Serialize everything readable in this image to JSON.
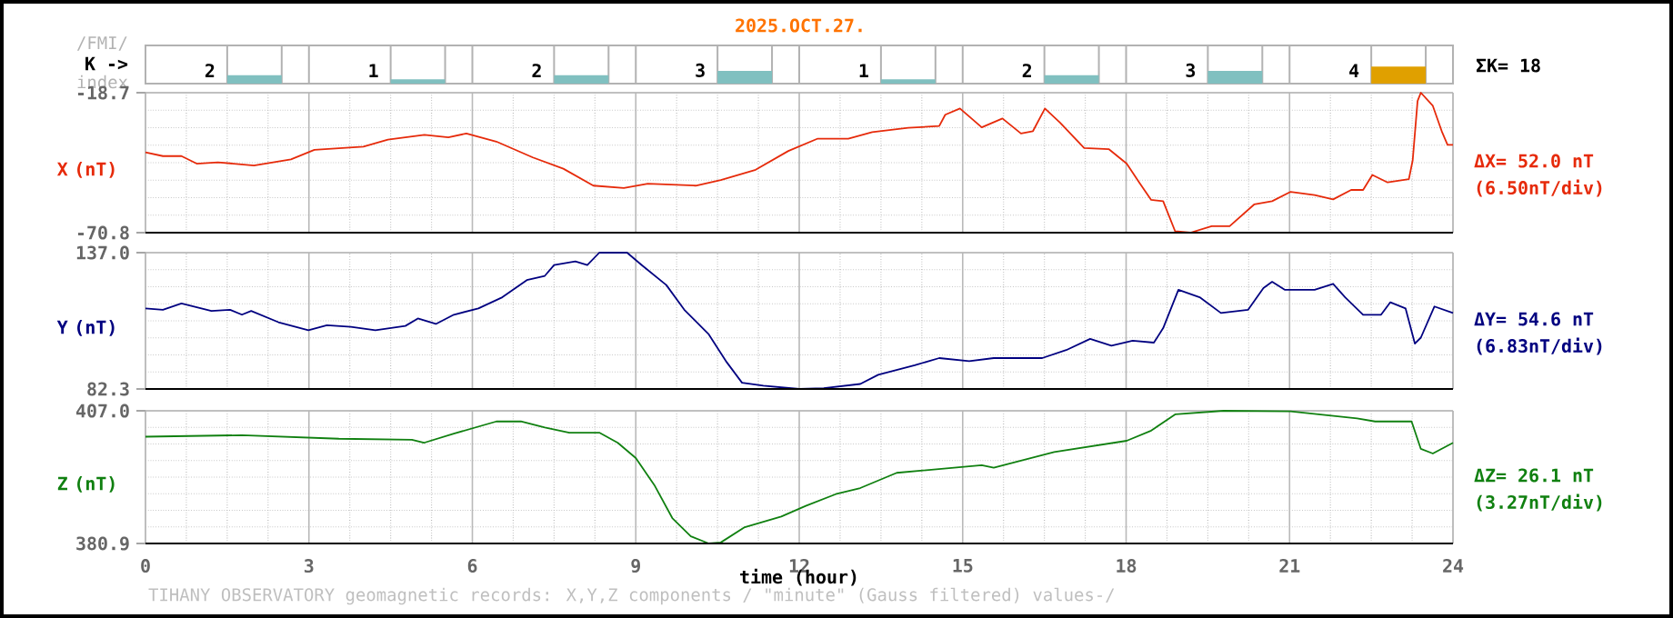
{
  "chart_data": [
    {
      "type": "bar",
      "title": "2025.OCT.27.",
      "ylabel": "K ->",
      "categories": [
        null,
        null,
        null,
        null,
        null,
        null,
        null,
        null
      ],
      "values": [
        2,
        1,
        2,
        3,
        1,
        2,
        3,
        4
      ],
      "colors": [
        "#80c0c0",
        "#80c0c0",
        "#80c0c0",
        "#80c0c0",
        "#80c0c0",
        "#80c0c0",
        "#80c0c0",
        "#e0a000"
      ],
      "tick_labels": false,
      "data_labels": true,
      "grid": "x",
      "annotations": [
        "/FMI/",
        "index",
        "ΣK= 18"
      ]
    },
    {
      "type": "line",
      "ylabel": "X (nT)",
      "color": "#e62a0a",
      "xlim": [
        0,
        24
      ],
      "xticks": [
        0,
        3,
        6,
        9,
        12,
        15,
        18,
        21,
        24
      ],
      "ylim": [
        -70.8,
        -18.7
      ],
      "yticks": [
        -70.8,
        -18.7
      ],
      "grid": true,
      "tick_labels": "y",
      "annotations": [
        "ΔX= 52.0 nT",
        "(6.50nT/div)"
      ],
      "x": [
        0,
        0.32,
        0.66,
        0.94,
        1.33,
        1.99,
        2.67,
        3.1,
        4.0,
        4.45,
        5.12,
        5.56,
        5.89,
        6.44,
        7.11,
        7.67,
        8.22,
        8.78,
        9.22,
        10.1,
        10.56,
        11.2,
        11.8,
        12.34,
        12.9,
        13.34,
        14.0,
        14.57,
        14.68,
        14.95,
        15.35,
        15.73,
        16.07,
        16.29,
        16.51,
        16.79,
        17.23,
        17.68,
        18.01,
        18.24,
        18.46,
        18.68,
        18.9,
        19.18,
        19.57,
        19.9,
        20.35,
        20.68,
        21.02,
        21.46,
        21.8,
        22.13,
        22.35,
        22.52,
        22.8,
        23.19,
        23.26,
        23.35,
        23.41,
        23.63,
        23.8,
        23.9,
        24
      ],
      "values": [
        -40.9,
        -42.3,
        -42.3,
        -45.1,
        -44.6,
        -45.8,
        -43.5,
        -40.0,
        -38.8,
        -36.2,
        -34.4,
        -35.3,
        -33.9,
        -36.9,
        -42.8,
        -47.0,
        -53.3,
        -54.2,
        -52.6,
        -53.3,
        -51.2,
        -47.4,
        -40.4,
        -35.8,
        -35.8,
        -33.4,
        -31.8,
        -31.1,
        -26.9,
        -24.6,
        -31.6,
        -28.3,
        -33.9,
        -33.0,
        -24.6,
        -29.9,
        -39.3,
        -39.7,
        -45.1,
        -52.1,
        -58.6,
        -59.1,
        -70.3,
        -70.8,
        -68.4,
        -68.4,
        -60.3,
        -59.1,
        -55.6,
        -56.8,
        -58.4,
        -54.9,
        -54.9,
        -49.3,
        -52.1,
        -50.9,
        -43.9,
        -21.8,
        -18.7,
        -23.6,
        -33.4,
        -38.1,
        -38.1
      ]
    },
    {
      "type": "line",
      "ylabel": "Y (nT)",
      "color": "#000080",
      "xlim": [
        0,
        24
      ],
      "xticks": [
        0,
        3,
        6,
        9,
        12,
        15,
        18,
        21,
        24
      ],
      "ylim": [
        82.3,
        137.0
      ],
      "yticks": [
        {
          "value": 82.3,
          "label": "82.3"
        },
        {
          "value": 137.0,
          "label": "137.0"
        }
      ],
      "grid": true,
      "tick_labels": "y",
      "annotations": [
        "ΔY= 54.6 nT",
        "(6.83nT/div)"
      ],
      "x": [
        0,
        0.32,
        0.66,
        1.21,
        1.55,
        1.77,
        1.94,
        2.44,
        2.99,
        3.33,
        3.77,
        4.22,
        4.77,
        5.0,
        5.33,
        5.66,
        6.11,
        6.55,
        7.0,
        7.33,
        7.5,
        7.89,
        8.11,
        8.33,
        8.84,
        9.11,
        9.56,
        9.89,
        10.34,
        10.67,
        10.95,
        11.34,
        12.0,
        12.45,
        13.12,
        13.45,
        14.12,
        14.57,
        15.12,
        15.57,
        16.46,
        16.9,
        17.34,
        17.73,
        18.12,
        18.51,
        18.68,
        18.96,
        19.35,
        19.74,
        20.24,
        20.52,
        20.68,
        20.91,
        21.46,
        21.8,
        22.02,
        22.35,
        22.68,
        22.85,
        23.13,
        23.3,
        23.41,
        23.66,
        24
      ],
      "values": [
        114.6,
        114.1,
        116.6,
        113.6,
        114.1,
        112.1,
        113.6,
        109.1,
        105.9,
        107.9,
        107.2,
        105.9,
        107.6,
        110.6,
        108.4,
        112.1,
        114.6,
        119.1,
        126.0,
        127.7,
        132.0,
        133.5,
        132.0,
        137.0,
        137.0,
        132.0,
        124.0,
        114.1,
        104.2,
        93.0,
        84.8,
        83.6,
        82.3,
        82.6,
        84.3,
        88.0,
        91.8,
        94.7,
        93.5,
        94.7,
        94.7,
        97.9,
        102.4,
        99.7,
        101.7,
        100.9,
        106.7,
        122.1,
        119.1,
        112.8,
        114.1,
        122.8,
        125.3,
        122.1,
        122.1,
        124.5,
        119.1,
        112.1,
        112.1,
        117.1,
        114.6,
        100.5,
        102.9,
        115.4,
        112.8
      ]
    },
    {
      "type": "line",
      "ylabel": "Z (nT)",
      "xlabel": "time (hour)",
      "color": "#108010",
      "xlim": [
        0,
        24
      ],
      "xticks": [
        0,
        3,
        6,
        9,
        12,
        15,
        18,
        21,
        24
      ],
      "ylim": [
        380.9,
        407.0
      ],
      "yticks": [
        {
          "value": 380.9,
          "label": "380.9"
        },
        {
          "value": 407.0,
          "label": "407.0"
        }
      ],
      "grid": true,
      "annotations": [
        "ΔZ= 26.1 nT",
        "(3.27nT/div)",
        "TIHANY OBSERVATORY geomagnetic records: X,Y,Z components / \"minute\" (Gauss filtered) values-/"
      ],
      "x": [
        0,
        1.77,
        3.55,
        4.89,
        5.11,
        5.66,
        6.44,
        6.89,
        7.33,
        7.78,
        8.33,
        8.67,
        9.0,
        9.34,
        9.67,
        10.01,
        10.34,
        10.56,
        11.0,
        11.67,
        12.12,
        12.67,
        13.12,
        13.79,
        15.35,
        15.57,
        16.68,
        18.01,
        18.46,
        18.9,
        19.79,
        21.02,
        22.24,
        22.57,
        23.24,
        23.41,
        23.63,
        24
      ],
      "values": [
        401.9,
        402.2,
        401.5,
        401.3,
        400.7,
        402.5,
        404.9,
        404.9,
        403.7,
        402.7,
        402.7,
        400.7,
        397.7,
        392.4,
        385.9,
        382.3,
        380.9,
        381.1,
        384.1,
        386.2,
        388.3,
        390.6,
        391.8,
        394.8,
        396.3,
        395.8,
        398.9,
        401.1,
        403.1,
        406.3,
        407.0,
        406.9,
        405.5,
        404.9,
        404.9,
        399.5,
        398.6,
        400.7
      ]
    }
  ]
}
